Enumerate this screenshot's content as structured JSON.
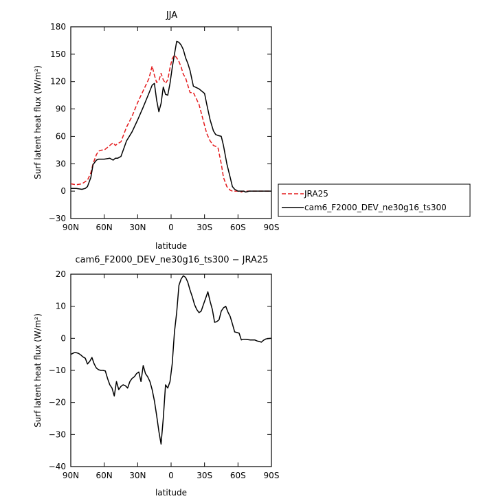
{
  "chart_data": [
    {
      "type": "line",
      "title": "JJA",
      "xlabel": "latitude",
      "ylabel": "Surf latent heat flux (W/m²)",
      "xlim": [
        90,
        -90
      ],
      "ylim": [
        -30,
        180
      ],
      "x_ticks": [
        90,
        60,
        30,
        0,
        -30,
        -60,
        -90
      ],
      "x_tick_labels": [
        "90N",
        "60N",
        "30N",
        "0",
        "30S",
        "60S",
        "90S"
      ],
      "y_ticks": [
        -30,
        0,
        30,
        60,
        90,
        120,
        150,
        180
      ],
      "y_tick_labels": [
        "−30",
        "0",
        "30",
        "60",
        "90",
        "120",
        "150",
        "180"
      ],
      "legend": {
        "placement": "right"
      },
      "series": [
        {
          "name": "JRA25",
          "color": "#e41a1c",
          "style": "dashed",
          "x": [
            90,
            85,
            80,
            75,
            72,
            70,
            67,
            65,
            62,
            60,
            55,
            52,
            50,
            48,
            45,
            40,
            35,
            30,
            25,
            20,
            17,
            15,
            13,
            11,
            9,
            7,
            5,
            3,
            1,
            -1,
            -3,
            -5,
            -7,
            -9,
            -11,
            -13,
            -15,
            -17,
            -20,
            -25,
            -30,
            -32,
            -35,
            -38,
            -40,
            -42,
            -45,
            -47,
            -50,
            -53,
            -55,
            -57,
            -60,
            -63,
            -65,
            -67,
            -70,
            -75,
            -80,
            -85,
            -90
          ],
          "y": [
            8,
            7,
            8,
            12,
            20,
            30,
            40,
            44,
            45,
            45,
            50,
            53,
            50,
            52,
            54,
            70,
            82,
            97,
            110,
            123,
            137,
            127,
            119,
            121,
            129,
            122,
            118,
            122,
            135,
            145,
            149,
            146,
            142,
            136,
            128,
            124,
            116,
            108,
            108,
            95,
            72,
            63,
            55,
            50,
            49,
            48,
            30,
            15,
            5,
            1,
            0,
            0,
            0,
            -1,
            0,
            0,
            0,
            0,
            0,
            0,
            0
          ]
        },
        {
          "name": "cam6_F2000_DEV_ne30g16_ts300",
          "color": "#000000",
          "style": "solid",
          "x": [
            90,
            85,
            80,
            77,
            75,
            72,
            70,
            67,
            65,
            62,
            60,
            55,
            52,
            50,
            48,
            45,
            40,
            35,
            30,
            25,
            20,
            17,
            15,
            13,
            11,
            9,
            7,
            5,
            3,
            1,
            -1,
            -3,
            -5,
            -7,
            -9,
            -11,
            -13,
            -15,
            -17,
            -20,
            -25,
            -30,
            -32,
            -35,
            -38,
            -40,
            -42,
            -45,
            -47,
            -50,
            -53,
            -55,
            -57,
            -60,
            -63,
            -65,
            -67,
            -70,
            -75,
            -80,
            -85,
            -90
          ],
          "y": [
            3,
            3,
            2,
            3,
            5,
            15,
            29,
            34,
            35,
            35,
            35,
            36,
            34,
            36,
            36,
            38,
            55,
            65,
            78,
            92,
            107,
            116,
            118,
            100,
            87,
            96,
            114,
            106,
            105,
            118,
            135,
            150,
            164,
            163,
            160,
            155,
            146,
            140,
            132,
            115,
            112,
            107,
            95,
            78,
            66,
            62,
            61,
            60,
            50,
            30,
            15,
            5,
            2,
            0,
            0,
            0,
            -1,
            0,
            0,
            0,
            0,
            0
          ]
        }
      ]
    },
    {
      "type": "line",
      "title": "cam6_F2000_DEV_ne30g16_ts300 − JRA25",
      "xlabel": "latitude",
      "ylabel": "Surf latent heat flux (W/m²)",
      "xlim": [
        90,
        -90
      ],
      "ylim": [
        -40,
        20
      ],
      "x_ticks": [
        90,
        60,
        30,
        0,
        -30,
        -60,
        -90
      ],
      "x_tick_labels": [
        "90N",
        "60N",
        "30N",
        "0",
        "30S",
        "60S",
        "90S"
      ],
      "y_ticks": [
        -40,
        -30,
        -20,
        -10,
        0,
        10,
        20
      ],
      "y_tick_labels": [
        "−40",
        "−30",
        "−20",
        "−10",
        "0",
        "10",
        "20"
      ],
      "series": [
        {
          "color": "#000000",
          "style": "solid",
          "x": [
            90,
            87,
            85,
            83,
            81,
            79,
            77,
            75,
            73,
            71,
            69,
            67,
            65,
            63,
            61,
            59,
            57,
            55,
            53,
            51,
            49,
            47,
            45,
            43,
            41,
            39,
            37,
            35,
            33,
            31,
            29,
            27,
            25,
            23,
            21,
            19,
            17,
            15,
            13,
            11,
            9,
            7,
            5,
            3,
            1,
            -1,
            -3,
            -5,
            -7,
            -9,
            -11,
            -13,
            -15,
            -17,
            -19,
            -21,
            -23,
            -25,
            -27,
            -29,
            -31,
            -33,
            -35,
            -37,
            -39,
            -41,
            -43,
            -45,
            -47,
            -49,
            -51,
            -53,
            -55,
            -57,
            -59,
            -61,
            -63,
            -65,
            -67,
            -69,
            -71,
            -73,
            -75,
            -77,
            -79,
            -81,
            -83,
            -85,
            -87,
            -90
          ],
          "y": [
            -5,
            -4.5,
            -4.5,
            -4.7,
            -5.2,
            -5.8,
            -6.2,
            -8,
            -7.2,
            -6,
            -8,
            -9.3,
            -9.8,
            -10,
            -10,
            -10.2,
            -12.5,
            -14.5,
            -15.5,
            -18,
            -13.5,
            -16,
            -15,
            -14.5,
            -14.8,
            -15.5,
            -13.5,
            -12.5,
            -12,
            -11,
            -10.5,
            -13.5,
            -8.5,
            -11,
            -12,
            -13.5,
            -16,
            -19.5,
            -24,
            -29,
            -33,
            -25,
            -14.5,
            -15.5,
            -13.5,
            -8,
            2,
            8,
            16.5,
            18.5,
            19.5,
            19,
            17.5,
            15,
            13,
            10.5,
            9,
            8,
            8.5,
            10.5,
            12.5,
            14.5,
            11.5,
            9,
            5,
            5.2,
            5.8,
            8.5,
            9.5,
            10,
            8.2,
            6.8,
            4.5,
            2,
            1.8,
            1.6,
            -0.5,
            -0.3,
            -0.3,
            -0.4,
            -0.5,
            -0.5,
            -0.5,
            -0.8,
            -1,
            -1.2,
            -0.6,
            -0.2,
            -0.1,
            0
          ]
        }
      ]
    }
  ]
}
